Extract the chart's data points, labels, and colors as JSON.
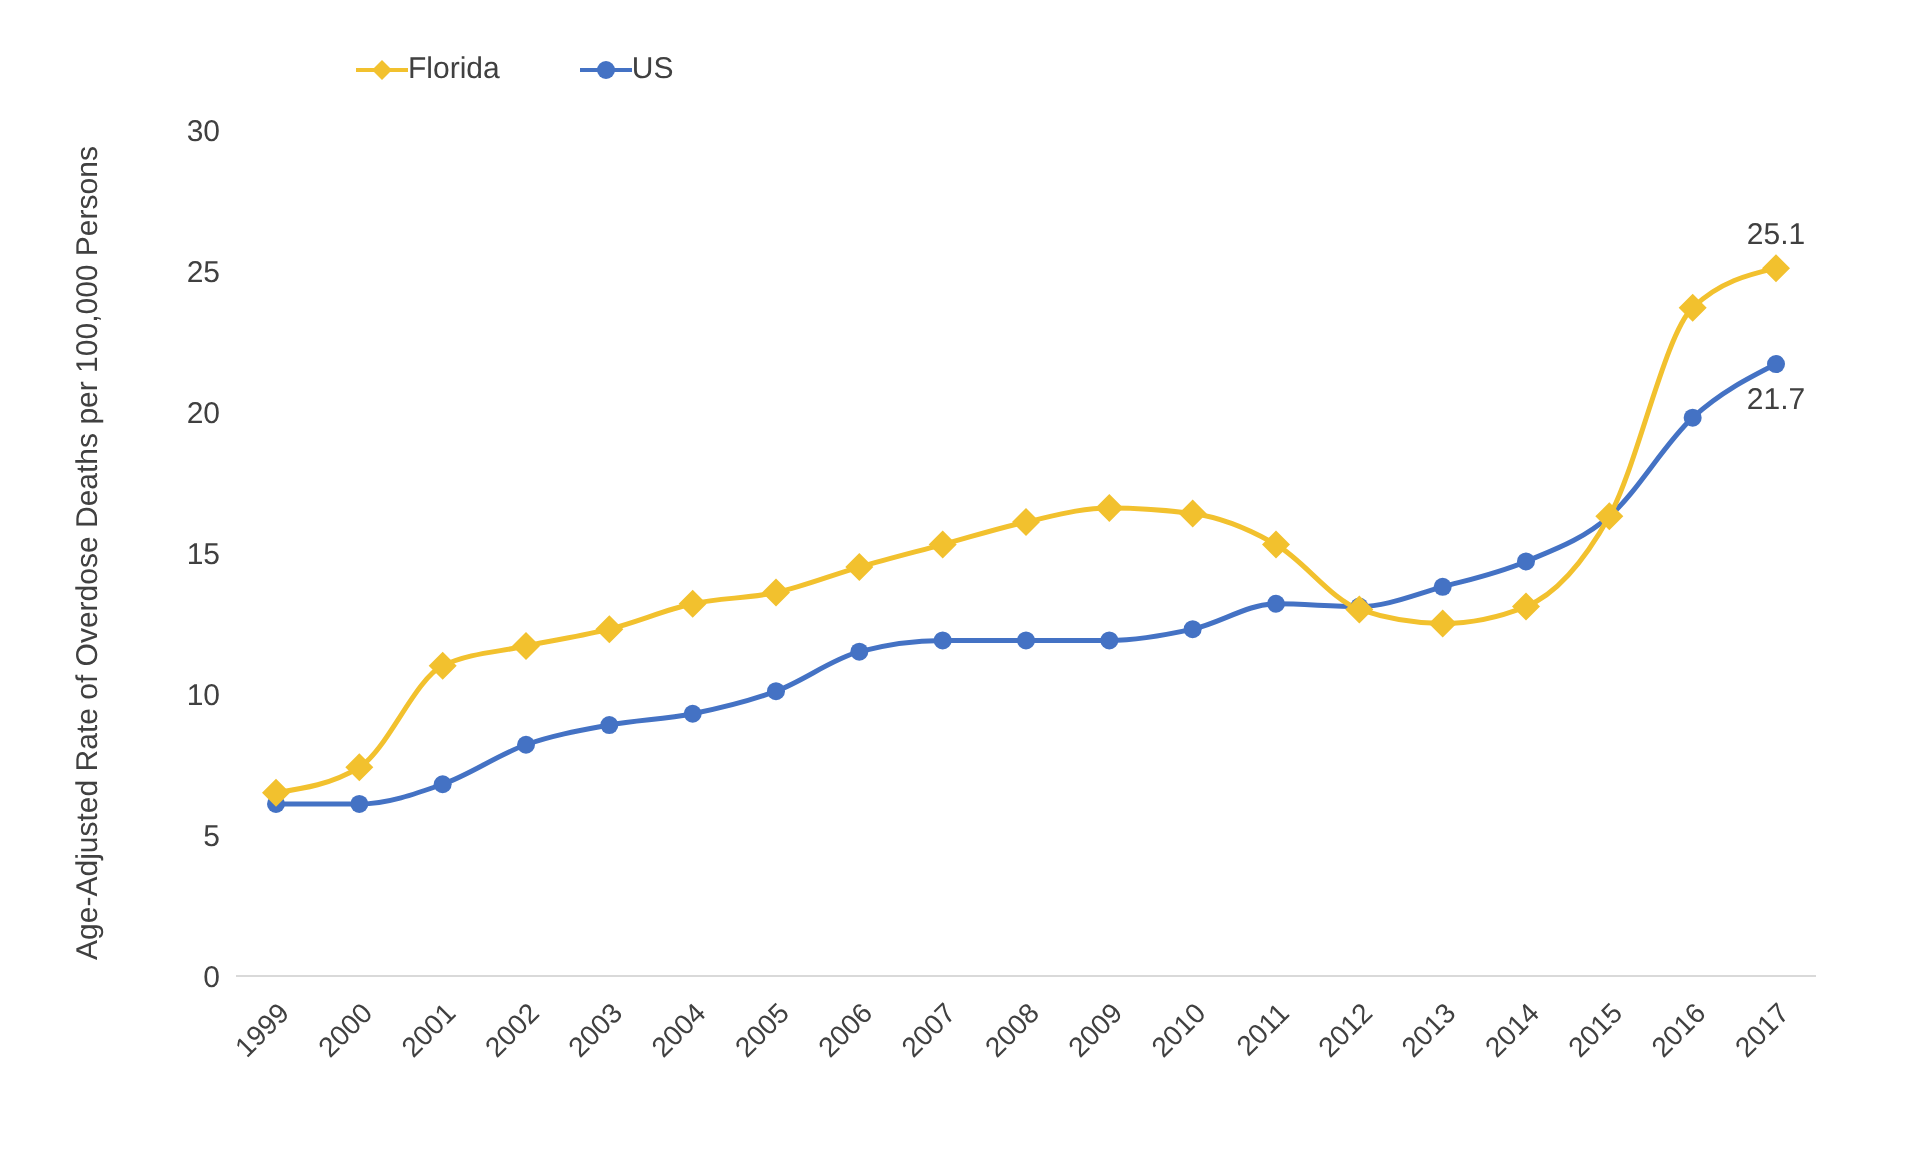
{
  "chart_data": {
    "type": "line",
    "ylabel": "Age-Adjusted Rate of Overdose Deaths per 100,000 Persons",
    "categories": [
      "1999",
      "2000",
      "2001",
      "2002",
      "2003",
      "2004",
      "2005",
      "2006",
      "2007",
      "2008",
      "2009",
      "2010",
      "2011",
      "2012",
      "2013",
      "2014",
      "2015",
      "2016",
      "2017"
    ],
    "series": [
      {
        "name": "Florida",
        "color": "#f2c12e",
        "marker": "diamond",
        "values": [
          6.5,
          7.4,
          11.0,
          11.7,
          12.3,
          13.2,
          13.6,
          14.5,
          15.3,
          16.1,
          16.6,
          16.4,
          15.3,
          13.0,
          12.5,
          13.1,
          16.3,
          23.7,
          25.1
        ]
      },
      {
        "name": "US",
        "color": "#4472c4",
        "marker": "circle",
        "values": [
          6.1,
          6.1,
          6.8,
          8.2,
          8.9,
          9.3,
          10.1,
          11.5,
          11.9,
          11.9,
          11.9,
          12.3,
          13.2,
          13.1,
          13.8,
          14.7,
          16.3,
          19.8,
          21.7
        ]
      }
    ],
    "ylim": [
      0,
      30
    ],
    "yticks": [
      0,
      5,
      10,
      15,
      20,
      25,
      30
    ],
    "grid": false,
    "legend": "top left",
    "annotations": [
      {
        "text": "25.1",
        "x": "2017",
        "y": 25.1
      },
      {
        "text": "21.7",
        "x": "2017",
        "y": 21.7
      }
    ]
  }
}
